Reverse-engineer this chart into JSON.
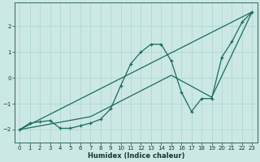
{
  "xlabel": "Humidex (Indice chaleur)",
  "bg_color": "#cce8e4",
  "grid_color": "#aad4cf",
  "line_color": "#1a6b60",
  "xlim": [
    -0.5,
    23.5
  ],
  "ylim": [
    -2.5,
    2.9
  ],
  "yticks": [
    -2,
    -1,
    0,
    1,
    2
  ],
  "xticks": [
    0,
    1,
    2,
    3,
    4,
    5,
    6,
    7,
    8,
    9,
    10,
    11,
    12,
    13,
    14,
    15,
    16,
    17,
    18,
    19,
    20,
    21,
    22,
    23
  ],
  "line1_x": [
    0,
    1,
    2,
    3,
    4,
    5,
    6,
    7,
    8,
    9,
    10,
    11,
    12,
    13,
    14,
    15,
    16,
    17,
    18,
    19,
    20,
    21,
    22,
    23
  ],
  "line1_y": [
    -2.0,
    -1.75,
    -1.7,
    -1.65,
    -1.95,
    -1.95,
    -1.85,
    -1.75,
    -1.6,
    -1.2,
    -0.3,
    0.55,
    1.0,
    1.3,
    1.3,
    0.65,
    -0.55,
    -1.3,
    -0.8,
    -0.8,
    0.8,
    1.4,
    2.15,
    2.55
  ],
  "line2_x": [
    0,
    23
  ],
  "line2_y": [
    -2.0,
    2.55
  ],
  "line3_x": [
    0,
    7,
    15,
    19,
    23
  ],
  "line3_y": [
    -2.0,
    -1.5,
    0.1,
    -0.75,
    2.55
  ]
}
